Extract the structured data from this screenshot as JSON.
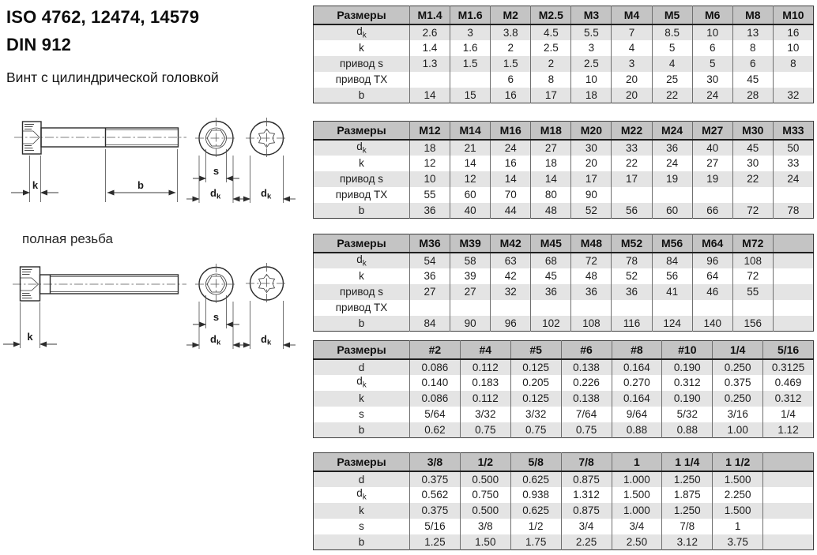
{
  "header": {
    "title_line1": "ISO 4762, 12474, 14579",
    "title_line2": "DIN 912",
    "subtitle": "Винт с цилиндрической головкой"
  },
  "drawing": {
    "full_thread_label": "полная резьба",
    "dim_k": "k",
    "dim_b": "b",
    "dim_s": "s",
    "dim_d": "d",
    "dim_d_sub": "k"
  },
  "colors": {
    "table_header_bg": "#c4c4c4",
    "table_row_alt_bg": "#e4e4e4",
    "table_border": "#3f3f3f",
    "text": "#1c1c1c"
  },
  "tables": [
    {
      "name": "metric-m1-4-m10",
      "header_label": "Размеры",
      "columns": [
        "M1.4",
        "M1.6",
        "M2",
        "M2.5",
        "M3",
        "M4",
        "M5",
        "M6",
        "M8",
        "M10"
      ],
      "rows": [
        {
          "label": "d",
          "sub": "k",
          "values": [
            "2.6",
            "3",
            "3.8",
            "4.5",
            "5.5",
            "7",
            "8.5",
            "10",
            "13",
            "16"
          ]
        },
        {
          "label": "k",
          "sub": "",
          "values": [
            "1.4",
            "1.6",
            "2",
            "2.5",
            "3",
            "4",
            "5",
            "6",
            "8",
            "10"
          ]
        },
        {
          "label": "привод s",
          "sub": "",
          "values": [
            "1.3",
            "1.5",
            "1.5",
            "2",
            "2.5",
            "3",
            "4",
            "5",
            "6",
            "8"
          ]
        },
        {
          "label": "привод TX",
          "sub": "",
          "values": [
            "",
            "",
            "6",
            "8",
            "10",
            "20",
            "25",
            "30",
            "45",
            ""
          ]
        },
        {
          "label": "b",
          "sub": "",
          "values": [
            "14",
            "15",
            "16",
            "17",
            "18",
            "20",
            "22",
            "24",
            "28",
            "32"
          ]
        }
      ]
    },
    {
      "name": "metric-m12-m33",
      "header_label": "Размеры",
      "columns": [
        "M12",
        "M14",
        "M16",
        "M18",
        "M20",
        "M22",
        "M24",
        "M27",
        "M30",
        "M33"
      ],
      "rows": [
        {
          "label": "d",
          "sub": "k",
          "values": [
            "18",
            "21",
            "24",
            "27",
            "30",
            "33",
            "36",
            "40",
            "45",
            "50"
          ]
        },
        {
          "label": "k",
          "sub": "",
          "values": [
            "12",
            "14",
            "16",
            "18",
            "20",
            "22",
            "24",
            "27",
            "30",
            "33"
          ]
        },
        {
          "label": "привод s",
          "sub": "",
          "values": [
            "10",
            "12",
            "14",
            "14",
            "17",
            "17",
            "19",
            "19",
            "22",
            "24"
          ]
        },
        {
          "label": "привод TX",
          "sub": "",
          "values": [
            "55",
            "60",
            "70",
            "80",
            "90",
            "",
            "",
            "",
            "",
            ""
          ]
        },
        {
          "label": "b",
          "sub": "",
          "values": [
            "36",
            "40",
            "44",
            "48",
            "52",
            "56",
            "60",
            "66",
            "72",
            "78"
          ]
        }
      ]
    },
    {
      "name": "metric-m36-m72",
      "header_label": "Размеры",
      "columns": [
        "M36",
        "M39",
        "M42",
        "M45",
        "M48",
        "M52",
        "M56",
        "M64",
        "M72",
        ""
      ],
      "rows": [
        {
          "label": "d",
          "sub": "k",
          "values": [
            "54",
            "58",
            "63",
            "68",
            "72",
            "78",
            "84",
            "96",
            "108",
            ""
          ]
        },
        {
          "label": "k",
          "sub": "",
          "values": [
            "36",
            "39",
            "42",
            "45",
            "48",
            "52",
            "56",
            "64",
            "72",
            ""
          ]
        },
        {
          "label": "привод s",
          "sub": "",
          "values": [
            "27",
            "27",
            "32",
            "36",
            "36",
            "36",
            "41",
            "46",
            "55",
            ""
          ]
        },
        {
          "label": "привод TX",
          "sub": "",
          "values": [
            "",
            "",
            "",
            "",
            "",
            "",
            "",
            "",
            "",
            ""
          ]
        },
        {
          "label": "b",
          "sub": "",
          "values": [
            "84",
            "90",
            "96",
            "102",
            "108",
            "116",
            "124",
            "140",
            "156",
            ""
          ]
        }
      ]
    },
    {
      "name": "inch-2-516",
      "header_label": "Размеры",
      "columns": [
        "#2",
        "#4",
        "#5",
        "#6",
        "#8",
        "#10",
        "1/4",
        "5/16"
      ],
      "rows": [
        {
          "label": "d",
          "sub": "",
          "values": [
            "0.086",
            "0.112",
            "0.125",
            "0.138",
            "0.164",
            "0.190",
            "0.250",
            "0.3125"
          ]
        },
        {
          "label": "d",
          "sub": "k",
          "values": [
            "0.140",
            "0.183",
            "0.205",
            "0.226",
            "0.270",
            "0.312",
            "0.375",
            "0.469"
          ]
        },
        {
          "label": "k",
          "sub": "",
          "values": [
            "0.086",
            "0.112",
            "0.125",
            "0.138",
            "0.164",
            "0.190",
            "0.250",
            "0.312"
          ]
        },
        {
          "label": "s",
          "sub": "",
          "values": [
            "5/64",
            "3/32",
            "3/32",
            "7/64",
            "9/64",
            "5/32",
            "3/16",
            "1/4"
          ]
        },
        {
          "label": "b",
          "sub": "",
          "values": [
            "0.62",
            "0.75",
            "0.75",
            "0.75",
            "0.88",
            "0.88",
            "1.00",
            "1.12"
          ]
        }
      ]
    },
    {
      "name": "inch-38-112",
      "header_label": "Размеры",
      "columns": [
        "3/8",
        "1/2",
        "5/8",
        "7/8",
        "1",
        "1 1/4",
        "1 1/2",
        ""
      ],
      "rows": [
        {
          "label": "d",
          "sub": "",
          "values": [
            "0.375",
            "0.500",
            "0.625",
            "0.875",
            "1.000",
            "1.250",
            "1.500",
            ""
          ]
        },
        {
          "label": "d",
          "sub": "k",
          "values": [
            "0.562",
            "0.750",
            "0.938",
            "1.312",
            "1.500",
            "1.875",
            "2.250",
            ""
          ]
        },
        {
          "label": "k",
          "sub": "",
          "values": [
            "0.375",
            "0.500",
            "0.625",
            "0.875",
            "1.000",
            "1.250",
            "1.500",
            ""
          ]
        },
        {
          "label": "s",
          "sub": "",
          "values": [
            "5/16",
            "3/8",
            "1/2",
            "3/4",
            "3/4",
            "7/8",
            "1",
            ""
          ]
        },
        {
          "label": "b",
          "sub": "",
          "values": [
            "1.25",
            "1.50",
            "1.75",
            "2.25",
            "2.50",
            "3.12",
            "3.75",
            ""
          ]
        }
      ]
    }
  ]
}
